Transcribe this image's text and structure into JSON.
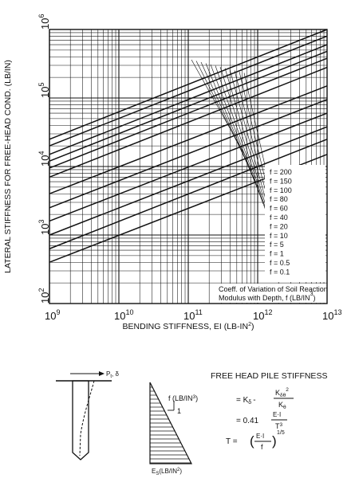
{
  "chart_data": {
    "type": "line",
    "title": "",
    "xlabel": "BENDING STIFFNESS, EI (LB-IN",
    "xlabel_sup": "2",
    "xlabel_end": ")",
    "ylabel": "LATERAL STIFFNESS FOR FREE-HEAD COND. (LB/IN)",
    "x_scale": "log",
    "y_scale": "log",
    "xlim": [
      1000000000.0,
      10000000000000.0
    ],
    "ylim": [
      100,
      1000000
    ],
    "grid": true,
    "x_ticks": [
      {
        "base": "10",
        "exp": "9"
      },
      {
        "base": "10",
        "exp": "10"
      },
      {
        "base": "10",
        "exp": "11"
      },
      {
        "base": "10",
        "exp": "12"
      },
      {
        "base": "10",
        "exp": "13"
      }
    ],
    "y_ticks": [
      {
        "base": "10",
        "exp": "2"
      },
      {
        "base": "10",
        "exp": "3"
      },
      {
        "base": "10",
        "exp": "4"
      },
      {
        "base": "10",
        "exp": "5"
      },
      {
        "base": "10",
        "exp": "6"
      }
    ],
    "legend_placement": "right",
    "series_labels": [
      "f =  200",
      "f = 150",
      "f = 100",
      "f = 80",
      "f = 60",
      "f = 40",
      "f = 20",
      "f = 10",
      "f = 5",
      "f = 1",
      "f = 0.5",
      "f = 0.1"
    ],
    "series": [
      {
        "f": 200,
        "points": [
          [
            1000000000.0,
            25000
          ],
          [
            10000000000000.0,
            1000000
          ]
        ]
      },
      {
        "f": 150,
        "points": [
          [
            1000000000.0,
            20000
          ],
          [
            10000000000000.0,
            800000
          ]
        ]
      },
      {
        "f": 100,
        "points": [
          [
            1000000000.0,
            15000
          ],
          [
            10000000000000.0,
            600000
          ]
        ]
      },
      {
        "f": 80,
        "points": [
          [
            1000000000.0,
            12000
          ],
          [
            10000000000000.0,
            480000
          ]
        ]
      },
      {
        "f": 60,
        "points": [
          [
            1000000000.0,
            9500
          ],
          [
            10000000000000.0,
            380000
          ]
        ]
      },
      {
        "f": 40,
        "points": [
          [
            1000000000.0,
            7000
          ],
          [
            10000000000000.0,
            280000
          ]
        ]
      },
      {
        "f": 20,
        "points": [
          [
            1000000000.0,
            4000
          ],
          [
            10000000000000.0,
            150000
          ]
        ]
      },
      {
        "f": 10,
        "points": [
          [
            1000000000.0,
            2500
          ],
          [
            10000000000000.0,
            95000
          ]
        ]
      },
      {
        "f": 5,
        "points": [
          [
            1000000000.0,
            1600
          ],
          [
            10000000000000.0,
            60000
          ]
        ]
      },
      {
        "f": 1,
        "points": [
          [
            1000000000.0,
            1000
          ],
          [
            10000000000000.0,
            38000
          ]
        ]
      },
      {
        "f": 0.5,
        "points": [
          [
            1000000000.0,
            630
          ],
          [
            10000000000000.0,
            25000
          ]
        ]
      },
      {
        "f": 0.1,
        "points": [
          [
            1000000000.0,
            400
          ],
          [
            10000000000000.0,
            15000
          ]
        ]
      }
    ],
    "note_lines": [
      "Coeff. of Variation of Soil Reaction",
      "Modulus with Depth, f (LB/IN"
    ],
    "note_sup": "3",
    "note_end": ")"
  },
  "diagram": {
    "load_label": "P",
    "load_sub": "t",
    "load_delta": ", δ",
    "soil_label": "f (LB/IN",
    "soil_sup": "3",
    "soil_end": ")",
    "slope_label": "1",
    "es_label": "E",
    "es_sub": "S",
    "es_unit": "(LB/IN",
    "es_unit_sup": "2",
    "es_unit_end": ")"
  },
  "formulas": {
    "title": "FREE HEAD PILE STIFFNESS",
    "f1_lhs": "= K",
    "f1_lhs_sub": "δ",
    "f1_minus": "-",
    "f1_num": "K",
    "f1_num_sub": "δθ",
    "f1_num_sup": "2",
    "f1_den": "K",
    "f1_den_sub": "θ",
    "f2_coef": "= 0.41",
    "f2_num": "E·I",
    "f2_den": "T",
    "f2_den_sup": "3",
    "f3_lhs": "T  =",
    "f3_num": "E·I",
    "f3_den": "f",
    "f3_exp": "1/5"
  }
}
